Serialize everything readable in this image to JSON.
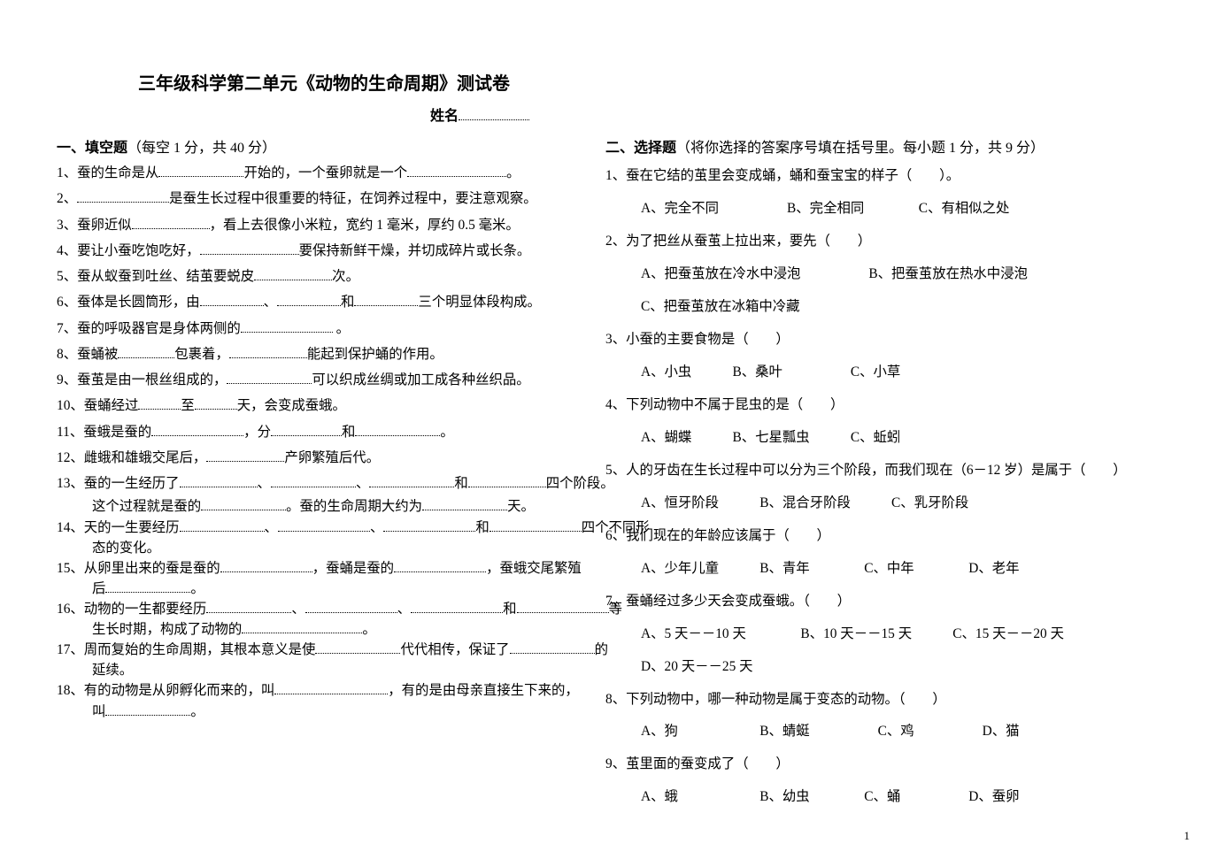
{
  "page_number": "1",
  "title": "三年级科学第二单元《动物的生命周期》测试卷",
  "name_label": "姓名",
  "name_underline_width": 80,
  "section1": {
    "heading_strong": "一、填空题",
    "heading_meta": "（每空 1 分，共 40 分）"
  },
  "section2": {
    "heading_strong": "二、选择题",
    "heading_meta": "（将你选择的答案序号填在括号里。每小题 1 分，共 9 分）"
  },
  "fill": {
    "q1_a": "1、蚕的生命是从",
    "q1_b": "开始的，一个蚕卵就是一个",
    "q1_c": "。",
    "q1_u1": 96,
    "q1_u2": 112,
    "q2_a": "2、",
    "q2_b": "是蚕生长过程中很重要的特征，在饲养过程中，要注意观察。",
    "q2_u1": 104,
    "q3_a": "3、蚕卵近似",
    "q3_b": "，看上去很像小米粒，宽约 1 毫米，厚约 0.5 毫米。",
    "q3_u1": 88,
    "q4_a": "4、要让小蚕吃饱吃好，",
    "q4_b": "要保持新鲜干燥，并切成碎片或长条。",
    "q4_u1": 112,
    "q5_a": "5、蚕从蚁蚕到吐丝、结茧要蜕皮",
    "q5_b": "次。",
    "q5_u1": 88,
    "q6_a": "6、蚕体是长圆筒形，由",
    "q6_b": "、",
    "q6_c": "和",
    "q6_d": "三个明显体段构成。",
    "q6_u1": 72,
    "q6_u2": 72,
    "q6_u3": 72,
    "q7_a": "7、蚕的呼吸器官是身体两侧的",
    "q7_b": " 。",
    "q7_u1": 104,
    "q8_a": "8、蚕蛹被",
    "q8_b": "包裹着，",
    "q8_c": "能起到保护蛹的作用。",
    "q8_u1": 64,
    "q8_u2": 88,
    "q9_a": "9、蚕茧是由一根丝组成的，",
    "q9_b": "可以织成丝绸或加工成各种丝织品。",
    "q9_u1": 96,
    "q10_a": "10、蚕蛹经过",
    "q10_b": "至",
    "q10_c": "天，会变成蚕蛾。",
    "q10_u1": 48,
    "q10_u2": 48,
    "q11_a": "11、蚕蛾是蚕的",
    "q11_b": "，分",
    "q11_c": "和",
    "q11_d": "。",
    "q11_u1": 104,
    "q11_u2": 80,
    "q11_u3": 96,
    "q12_a": "12、雌蛾和雄蛾交尾后，",
    "q12_b": "产卵繁殖后代。",
    "q12_u1": 88,
    "q13_a": "13、蚕的一生经历了",
    "q13_b": "、",
    "q13_c": "、",
    "q13_d": "和",
    "q13_e": "四个阶段。",
    "q13_u1": 88,
    "q13_u2": 96,
    "q13_u3": 96,
    "q13_u4": 88,
    "q13s_a": "这个过程就是蚕的",
    "q13s_b": "。蚕的生命周期大约为",
    "q13s_c": "天。",
    "q13s_u1": 96,
    "q13s_u2": 96,
    "q14_a": "14、天的一生要经历",
    "q14_b": "、",
    "q14_c": "、",
    "q14_d": "和",
    "q14_e": "四个不同形",
    "q14_u1": 96,
    "q14_u2": 104,
    "q14_u3": 104,
    "q14_u4": 104,
    "q14s": "态的变化。",
    "q15_a": "15、从卵里出来的蚕是蚕的",
    "q15_b": "，蚕蛹是蚕的",
    "q15_c": "，蚕蛾交尾繁殖",
    "q15_u1": 104,
    "q15_u2": 104,
    "q15s_a": "后",
    "q15s_b": "。",
    "q15s_u1": 96,
    "q16_a": "16、动物的一生都要经历",
    "q16_b": "、",
    "q16_c": "、",
    "q16_d": "和",
    "q16_e": "等",
    "q16_u1": 96,
    "q16_u2": 104,
    "q16_u3": 104,
    "q16_u4": 104,
    "q16s_a": "生长时期，构成了动物的",
    "q16s_b": "。",
    "q16s_u1": 136,
    "q17_a": "17、周而复始的生命周期，其根本意义是使",
    "q17_b": "代代相传，保证了",
    "q17_c": "的",
    "q17_u1": 96,
    "q17_u2": 96,
    "q17s": "延续。",
    "q18_a": "18、有的动物是从卵孵化而来的，叫",
    "q18_b": "，有的是由母亲直接生下来的，",
    "q18_u1": 128,
    "q18s_a": "叫",
    "q18s_b": "。",
    "q18s_u1": 96
  },
  "choice": {
    "q1": "1、蚕在它结的茧里会变成蛹，蛹和蚕宝宝的样子（　　）。",
    "q1_opts": "A、完全不同　　　　　B、完全相同　　　　C、有相似之处",
    "q2": "2、为了把丝从蚕茧上拉出来，要先（　　）",
    "q2_opts1": "A、把蚕茧放在冷水中浸泡　　　　　B、把蚕茧放在热水中浸泡",
    "q2_opts2": "C、把蚕茧放在冰箱中冷藏",
    "q3": "3、小蚕的主要食物是（　　）",
    "q3_opts": "A、小虫　　　B、桑叶　　　　　C、小草",
    "q4": "4、下列动物中不属于昆虫的是（　　）",
    "q4_opts": "A、蝴蝶　　　B、七星瓢虫　　　C、蚯蚓",
    "q5": "5、人的牙齿在生长过程中可以分为三个阶段，而我们现在（6－12 岁）是属于（　　）",
    "q5_opts": "A、恒牙阶段　　　B、混合牙阶段　　　C、乳牙阶段",
    "q6": "6、我们现在的年龄应该属于（　　）",
    "q6_opts": "A、少年儿童　　　B、青年　　　　C、中年　　　　D、老年",
    "q7": "7、蚕蛹经过多少天会变成蚕蛾。（　　）",
    "q7_opts1": "A、5 天－－10 天　　　　B、10 天－－15 天　　　C、15 天－－20 天",
    "q7_opts2": "D、20 天－－25 天",
    "q8": "8、下列动物中，哪一种动物是属于变态的动物。（　　）",
    "q8_opts": "A、狗　　　　　　B、蜻蜓　　　　　C、鸡　　　　　D、猫",
    "q9": "9、茧里面的蚕变成了（　　）",
    "q9_opts": "A、蛾　　　　　　B、幼虫　　　　C、蛹　　　　　D、蚕卵"
  }
}
